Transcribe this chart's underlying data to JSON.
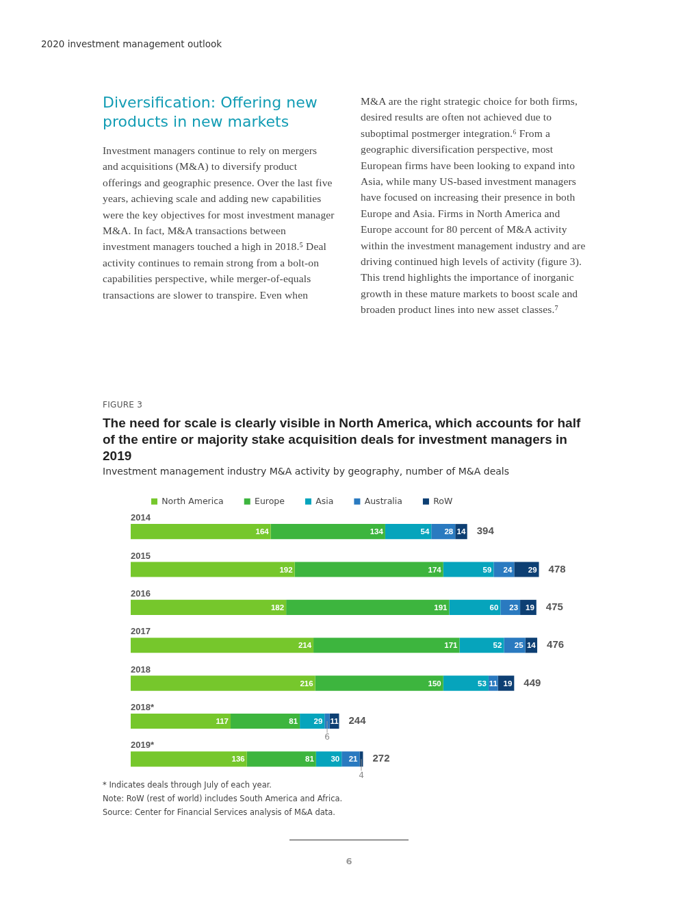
{
  "chart_data": {
    "type": "bar",
    "orientation": "horizontal",
    "stacked": true,
    "title": "The need for scale is clearly visible in North America, which accounts for half of the entire or majority stake acquisition deals for investment managers in 2019",
    "subtitle": "Investment management industry M&A activity by geography, number of M&A deals",
    "categories": [
      "2014",
      "2015",
      "2016",
      "2017",
      "2018",
      "2018*",
      "2019*"
    ],
    "series": [
      {
        "name": "North America",
        "color": "#76c72c",
        "values": [
          164,
          192,
          182,
          214,
          216,
          117,
          136
        ]
      },
      {
        "name": "Europe",
        "color": "#3db53e",
        "values": [
          134,
          174,
          191,
          171,
          150,
          81,
          81
        ]
      },
      {
        "name": "Asia",
        "color": "#06a4bc",
        "values": [
          54,
          59,
          60,
          52,
          53,
          29,
          30
        ]
      },
      {
        "name": "Australia",
        "color": "#2a7ac0",
        "values": [
          28,
          24,
          23,
          25,
          11,
          6,
          21
        ]
      },
      {
        "name": "RoW",
        "color": "#0d3f73",
        "values": [
          14,
          29,
          19,
          14,
          19,
          11,
          4
        ]
      }
    ],
    "totals": [
      "394",
      "478",
      "475",
      "476",
      "449",
      "244",
      "272"
    ],
    "data_labels": true,
    "legend": "top left",
    "tick_labels": "y",
    "annotations": [
      "2020 investment management outlook",
      "Diversification: Offering new products in new markets",
      "Investment managers continue to rely on mergers and acquisitions (M&A) to diversify product offerings and geographic presence. Over the last five years, achieving scale and adding new capabilities were the key objectives for most investment manager M&A. In fact, M&A transactions between investment managers touched a high in 2018.⁵ Deal activity continues to remain strong from a bolt-on capabilities perspective, while merger-of-equals transactions are slower to transpire. Even when M&A are the right strategic choice for both firms, desired results are often not achieved due to suboptimal postmerger integration.⁶ From a geographic diversification perspective, most European firms have been looking to expand into Asia, while many US-based investment managers have focused on increasing their presence in both Europe and Asia. Firms in North America and Europe account for 80 percent of M&A activity within the investment management industry and are driving continued high levels of activity (figure 3). This trend highlights the importance of inorganic growth in these mature markets to boost scale and broaden product lines into new asset classes.⁷",
      "FIGURE 3",
      "* Indicates deals through July of each year.",
      "Note: RoW (rest of world) includes South America and Africa.",
      "Source: Center for Financial Services analysis of M&A data.",
      "6"
    ]
  }
}
